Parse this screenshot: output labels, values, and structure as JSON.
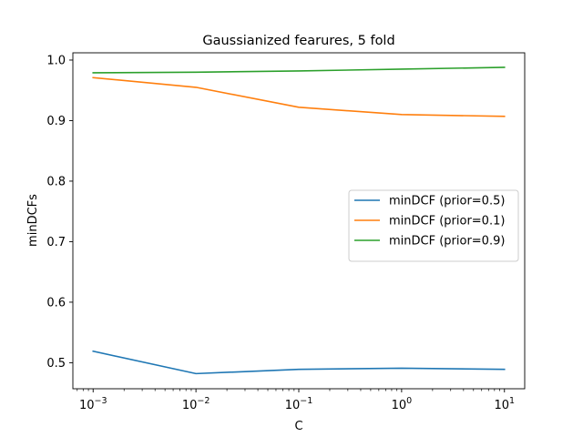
{
  "chart_data": {
    "type": "line",
    "title": "Gaussianized fearures, 5 fold",
    "xlabel": "C",
    "ylabel": "minDCFs",
    "xscale": "log",
    "x": [
      0.001,
      0.01,
      0.1,
      1,
      10
    ],
    "x_tick_labels": [
      {
        "base": "10",
        "exp": "−3"
      },
      {
        "base": "10",
        "exp": "−2"
      },
      {
        "base": "10",
        "exp": "−1"
      },
      {
        "base": "10",
        "exp": "0"
      },
      {
        "base": "10",
        "exp": "1"
      }
    ],
    "y_ticks": [
      0.5,
      0.6,
      0.7,
      0.8,
      0.9,
      1.0
    ],
    "y_tick_labels": [
      "0.5",
      "0.6",
      "0.7",
      "0.8",
      "0.9",
      "1.0"
    ],
    "ylim": [
      0.457,
      1.012
    ],
    "legend_position": "center-right",
    "grid": false,
    "series": [
      {
        "name": "minDCF (prior=0.5)",
        "color": "#1f77b4",
        "values": [
          0.519,
          0.482,
          0.489,
          0.491,
          0.489
        ]
      },
      {
        "name": "minDCF (prior=0.1)",
        "color": "#ff7f0e",
        "values": [
          0.971,
          0.955,
          0.922,
          0.91,
          0.907
        ]
      },
      {
        "name": "minDCF (prior=0.9)",
        "color": "#2ca02c",
        "values": [
          0.979,
          0.98,
          0.982,
          0.985,
          0.988
        ]
      }
    ]
  }
}
